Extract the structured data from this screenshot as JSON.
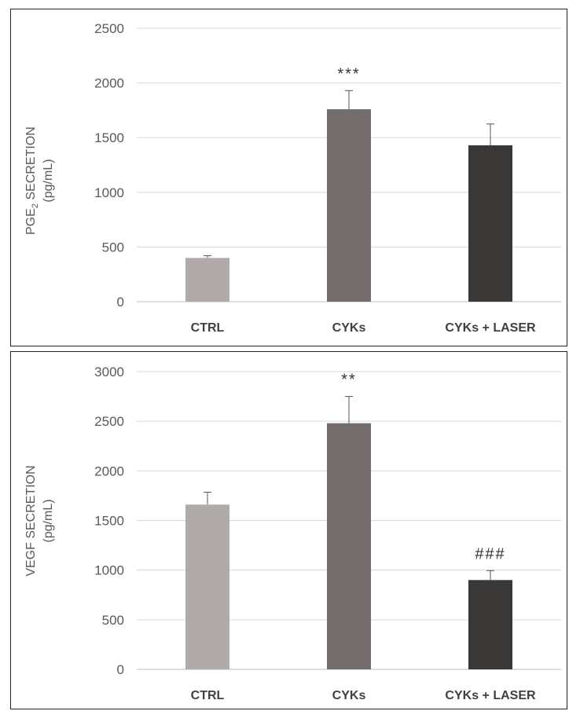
{
  "chart_data": [
    {
      "type": "bar",
      "title": "",
      "ylabel_main": "PGE",
      "ylabel_sub": "2",
      "ylabel_rest": " SECRETION",
      "ylabel_unit": "(pg/mL)",
      "categories": [
        "CTRL",
        "CYKs",
        "CYKs + LASER"
      ],
      "values": [
        400,
        1760,
        1430
      ],
      "errors": [
        20,
        170,
        195
      ],
      "annotations": [
        "",
        "***",
        ""
      ],
      "ylim": [
        0,
        2500
      ],
      "yticks": [
        0,
        500,
        1000,
        1500,
        2000,
        2500
      ],
      "grid": true,
      "colors": [
        "#b0aaa9",
        "#736e6d",
        "#3a3837"
      ]
    },
    {
      "type": "bar",
      "title": "",
      "ylabel_main": "VEGF SECRETION",
      "ylabel_unit": "(pg/mL)",
      "categories": [
        "CTRL",
        "CYKs",
        "CYKs + LASER"
      ],
      "values": [
        1660,
        2480,
        900
      ],
      "errors": [
        125,
        270,
        95
      ],
      "annotations": [
        "",
        "**",
        "###"
      ],
      "ylim": [
        0,
        3000
      ],
      "yticks": [
        0,
        500,
        1000,
        1500,
        2000,
        2500,
        3000
      ],
      "grid": true,
      "colors": [
        "#b0aaa9",
        "#736e6d",
        "#3a3837"
      ]
    }
  ]
}
